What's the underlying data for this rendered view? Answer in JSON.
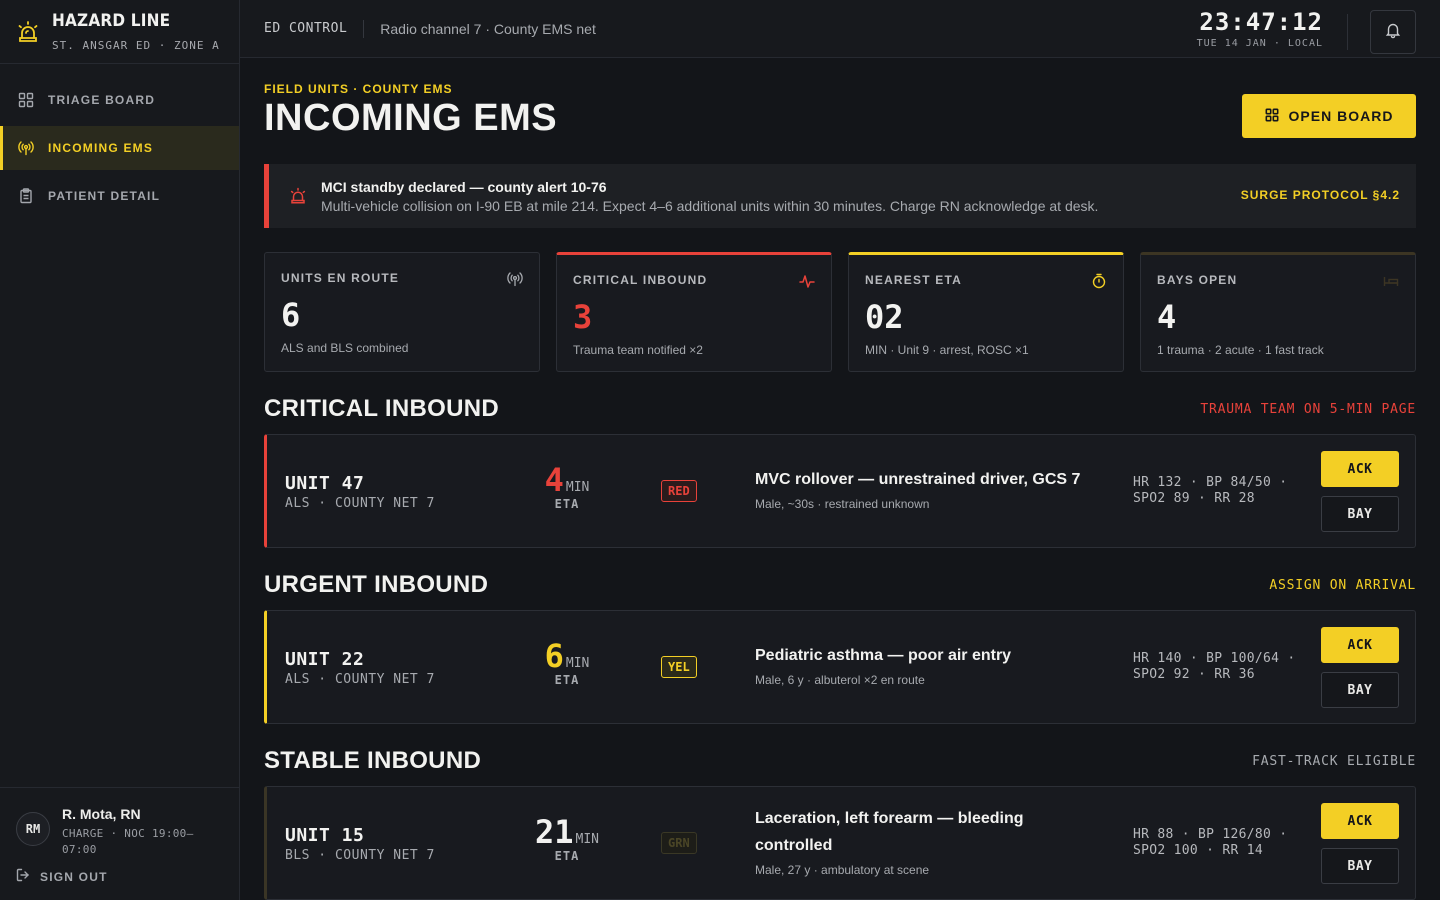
{
  "brand": {
    "title": "HAZARD LINE",
    "subtitle": "ST. ANSGAR ED · ZONE A",
    "icon": "siren-icon"
  },
  "nav": {
    "items": [
      {
        "label": "TRIAGE BOARD",
        "icon": "grid-icon",
        "active": false
      },
      {
        "label": "INCOMING EMS",
        "icon": "radio-icon",
        "active": true
      },
      {
        "label": "PATIENT DETAIL",
        "icon": "clipboard-icon",
        "active": false
      }
    ]
  },
  "user": {
    "initials": "RM",
    "name": "R. Mota, RN",
    "shift": "CHARGE · NOC 19:00–07:00",
    "signout_label": "SIGN OUT"
  },
  "topbar": {
    "context": "ED CONTROL",
    "channel": "Radio channel 7 · County EMS net",
    "time": "23:47:12",
    "date": "TUE 14 JAN · LOCAL"
  },
  "page": {
    "eyebrow": "FIELD UNITS · COUNTY EMS",
    "title": "INCOMING EMS",
    "open_board_label": "OPEN BOARD"
  },
  "alert": {
    "title": "MCI standby declared — county alert 10-76",
    "text": "Multi-vehicle collision on I-90 EB at mile 214. Expect 4–6 additional units within 30 minutes. Charge RN acknowledge at desk.",
    "link": "SURGE PROTOCOL §4.2"
  },
  "kpis": [
    {
      "label": "UNITS EN ROUTE",
      "value": "6",
      "sub": "ALS and BLS combined",
      "icon": "radio-icon"
    },
    {
      "label": "CRITICAL INBOUND",
      "value": "3",
      "sub": "Trauma team notified ×2",
      "icon": "pulse-icon"
    },
    {
      "label": "NEAREST ETA",
      "value": "02",
      "sub": "MIN · Unit 9 · arrest, ROSC ×1",
      "icon": "timer-icon"
    },
    {
      "label": "BAYS OPEN",
      "value": "4",
      "sub": "1 trauma · 2 acute · 1 fast track",
      "icon": "bed-icon"
    }
  ],
  "sections": [
    {
      "title": "CRITICAL INBOUND",
      "note": "TRAUMA TEAM ON 5-MIN PAGE",
      "unit": {
        "name": "UNIT 47",
        "net": "ALS · COUNTY NET 7",
        "eta": "4",
        "eta_unit": "MIN",
        "eta_label": "ETA",
        "tag": "RED",
        "complaint": "MVC rollover — unrestrained driver, GCS 7",
        "detail": "Male, ~30s · restrained unknown",
        "vitals_1": "HR 132 · BP 84/50 ·",
        "vitals_2": "SPO2 89 · RR 28",
        "ack": "ACK",
        "bay": "BAY"
      }
    },
    {
      "title": "URGENT INBOUND",
      "note": "ASSIGN ON ARRIVAL",
      "unit": {
        "name": "UNIT 22",
        "net": "ALS · COUNTY NET 7",
        "eta": "6",
        "eta_unit": "MIN",
        "eta_label": "ETA",
        "tag": "YEL",
        "complaint": "Pediatric asthma — poor air entry",
        "detail": "Male, 6 y · albuterol ×2 en route",
        "vitals_1": "HR 140 · BP 100/64 ·",
        "vitals_2": "SPO2 92 · RR 36",
        "ack": "ACK",
        "bay": "BAY"
      }
    },
    {
      "title": "STABLE INBOUND",
      "note": "FAST-TRACK ELIGIBLE",
      "unit": {
        "name": "UNIT 15",
        "net": "BLS · COUNTY NET 7",
        "eta": "21",
        "eta_unit": "MIN",
        "eta_label": "ETA",
        "tag": "GRN",
        "complaint": "Laceration, left forearm — bleeding controlled",
        "detail": "Male, 27 y · ambulatory at scene",
        "vitals_1": "HR 88 · BP 126/80 ·",
        "vitals_2": "SPO2 100 · RR 14",
        "ack": "ACK",
        "bay": "BAY"
      }
    }
  ],
  "colors": {
    "accent": "#f3cf25",
    "critical": "#e8423a",
    "background": "#131519",
    "panel": "#181a1f"
  }
}
